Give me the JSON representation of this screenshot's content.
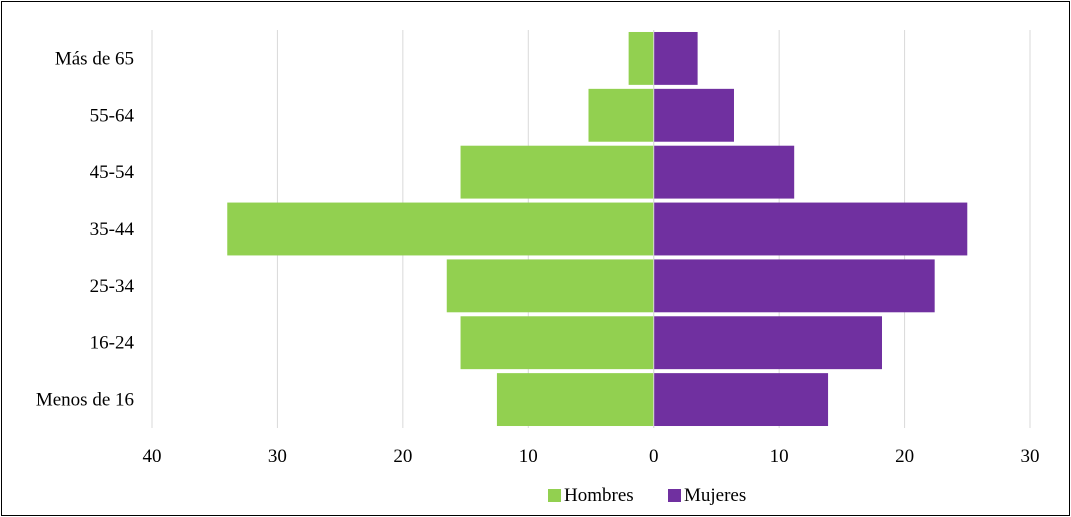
{
  "chart_data": {
    "type": "bar",
    "orientation": "horizontal",
    "layout": "population-pyramid",
    "categories": [
      "Menos de 16",
      "16-24",
      "25-34",
      "35-44",
      "45-54",
      "55-64",
      "Más de 65"
    ],
    "series": [
      {
        "name": "Hombres",
        "color": "#92d050",
        "side": "left",
        "values": [
          12.5,
          15.4,
          16.5,
          34.0,
          15.4,
          5.2,
          2.0
        ]
      },
      {
        "name": "Mujeres",
        "color": "#7030a0",
        "side": "right",
        "values": [
          13.9,
          18.2,
          22.4,
          25.0,
          11.2,
          6.4,
          3.5
        ]
      }
    ],
    "xlim": [
      -40,
      30
    ],
    "x_ticks": [
      -40,
      -30,
      -20,
      -10,
      0,
      10,
      20,
      30
    ],
    "x_tick_labels": [
      "40",
      "30",
      "20",
      "10",
      "0",
      "10",
      "20",
      "30"
    ],
    "grid": true,
    "legend": "bottom",
    "title": "",
    "xlabel": "",
    "ylabel": ""
  }
}
